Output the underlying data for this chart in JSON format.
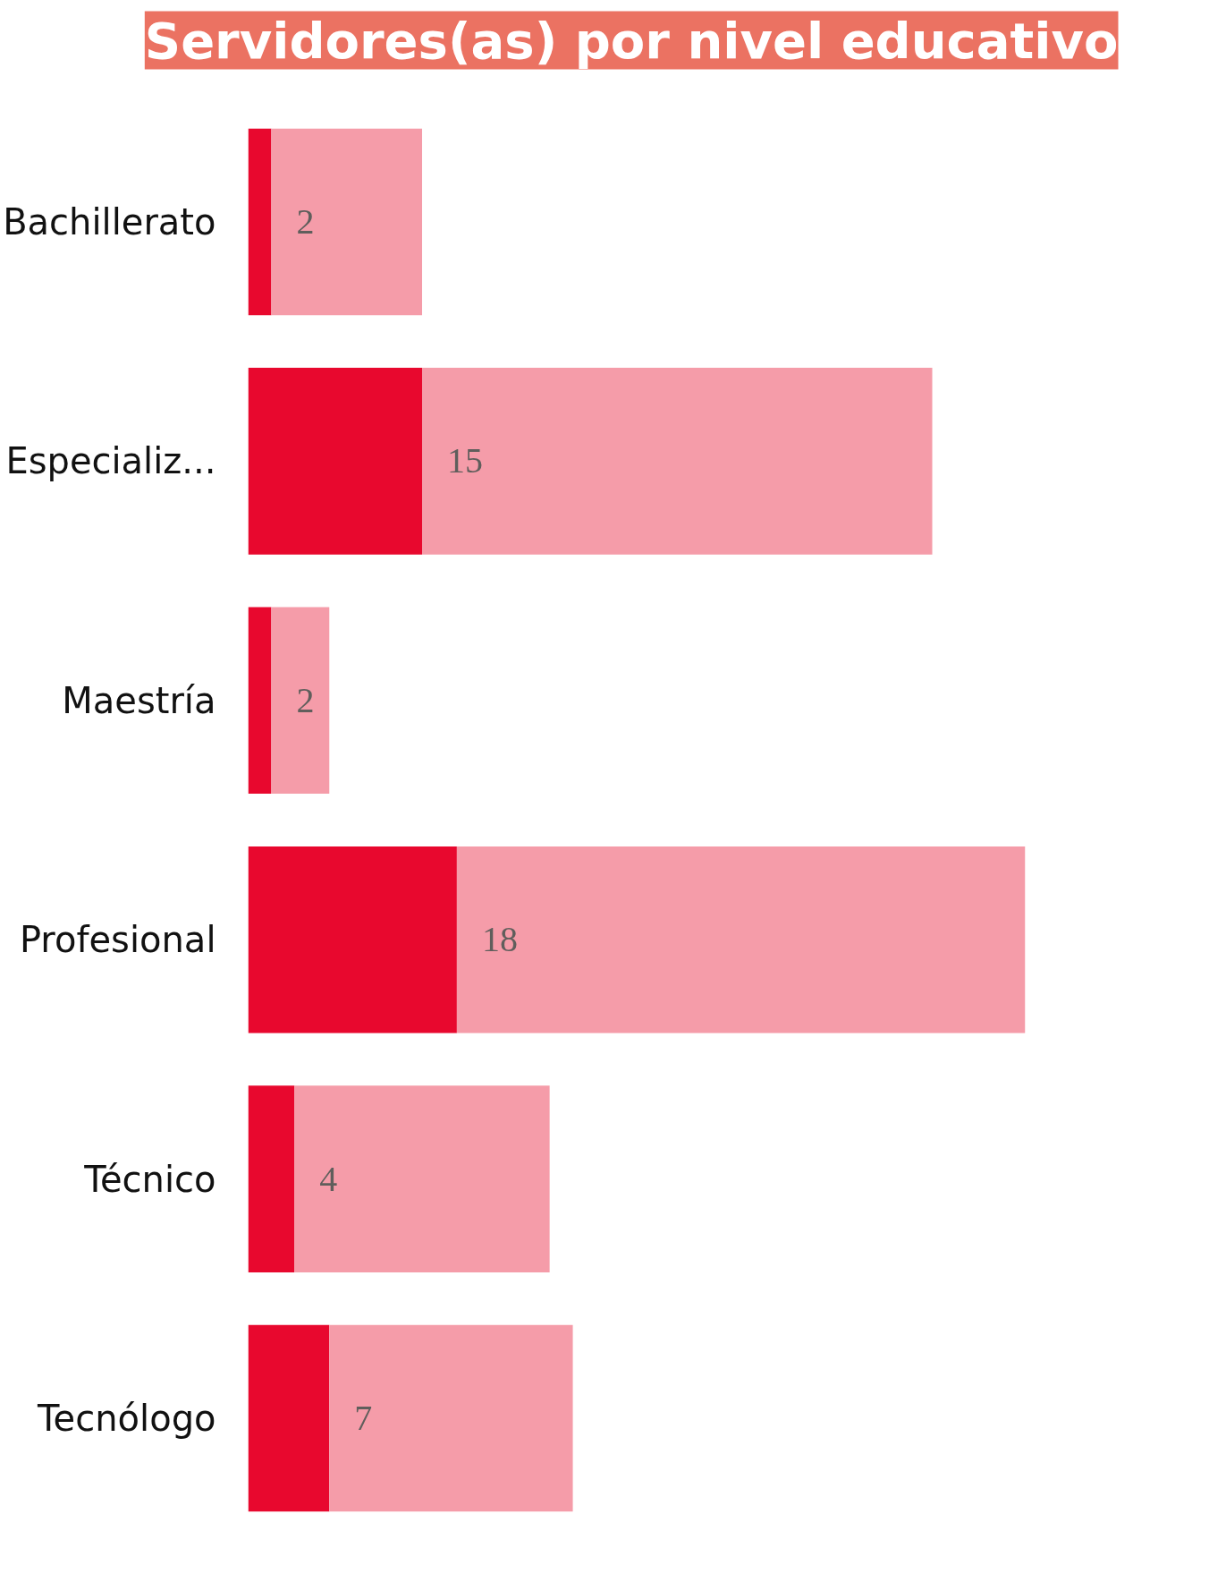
{
  "chart_data": {
    "type": "bar",
    "orientation": "horizontal",
    "stacked": true,
    "title": "Servidores(as) por nivel educativo",
    "categories": [
      "Bachillerato",
      "Especializ...",
      "Maestría",
      "Profesional",
      "Técnico",
      "Tecnólogo"
    ],
    "series": [
      {
        "color": "#e8082e",
        "values": [
          2,
          15,
          2,
          18,
          4,
          7
        ],
        "value_labels": [
          "2",
          "15",
          "2",
          "18",
          "4",
          "7"
        ]
      },
      {
        "color": "#f59ca9",
        "values": [
          13,
          44,
          5,
          49,
          22,
          21
        ]
      }
    ]
  }
}
